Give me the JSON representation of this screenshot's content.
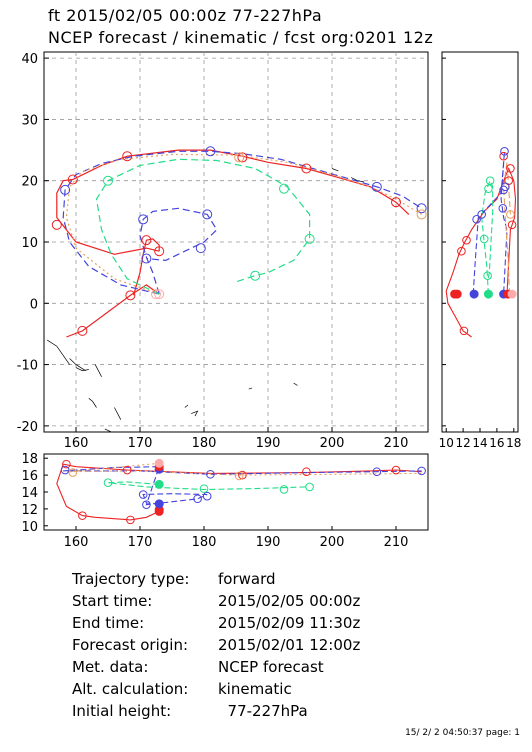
{
  "header": {
    "line1": "ft 2015/02/05 00:00z  77-227hPa",
    "line2": "NCEP forecast / kinematic / fcst org:0201 12z"
  },
  "info": [
    {
      "label": "Trajectory type:",
      "value": "forward"
    },
    {
      "label": "Start time:",
      "value": "2015/02/05 00:00z"
    },
    {
      "label": "End time:",
      "value": "2015/02/09 11:30z"
    },
    {
      "label": "Forecast origin:",
      "value": "2015/02/01 12:00z"
    },
    {
      "label": "Met. data:",
      "value": "NCEP forecast"
    },
    {
      "label": "Alt. calculation:",
      "value": "kinematic"
    },
    {
      "label": "Initial height:",
      "value": "  77-227hPa"
    }
  ],
  "footer": "15/ 2/ 2 04:50:37 page: 1",
  "chart_data": [
    {
      "type": "line",
      "panel": "map",
      "xlim": [
        155,
        215
      ],
      "ylim": [
        -21,
        41
      ],
      "xticks": [
        160,
        170,
        180,
        190,
        200,
        210
      ],
      "yticks": [
        -20,
        -10,
        0,
        10,
        20,
        30,
        40
      ],
      "grid": true,
      "series": [
        {
          "color": "#ee2222",
          "dash": "solid",
          "points": [
            [
              173,
              1.5
            ],
            [
              171,
              3
            ],
            [
              168.5,
              1.3
            ],
            [
              161,
              -4.5
            ],
            [
              158.5,
              -5.5
            ]
          ]
        },
        {
          "color": "#ee2222",
          "dash": "solid",
          "points": [
            [
              169,
              1.3
            ],
            [
              170,
              5
            ],
            [
              170.5,
              8
            ],
            [
              171,
              10.3
            ],
            [
              172,
              10.5
            ],
            [
              173,
              9.5
            ],
            [
              173,
              8.5
            ]
          ]
        },
        {
          "color": "#ee2222",
          "dash": "solid",
          "points": [
            [
              173,
              8.5
            ],
            [
              171,
              9
            ],
            [
              166,
              8
            ],
            [
              160,
              10
            ],
            [
              157,
              14
            ],
            [
              157,
              18
            ],
            [
              158,
              20
            ],
            [
              159.5,
              20.2
            ],
            [
              164,
              22.5
            ],
            [
              168,
              24
            ],
            [
              176,
              25
            ],
            [
              181,
              25
            ],
            [
              186,
              24
            ],
            [
              190,
              23
            ],
            [
              196,
              22
            ],
            [
              201,
              20.5
            ],
            [
              206,
              19
            ],
            [
              210,
              16.5
            ],
            [
              212,
              14.5
            ]
          ]
        },
        {
          "color": "#4444dd",
          "dash": "dashed",
          "points": [
            [
              173,
              1.5
            ],
            [
              172,
              5
            ],
            [
              171,
              7.5
            ],
            [
              170,
              11
            ],
            [
              170.5,
              13.7
            ],
            [
              172,
              15
            ],
            [
              176,
              15.5
            ],
            [
              180.5,
              14.5
            ],
            [
              182,
              12
            ],
            [
              180,
              10
            ],
            [
              177,
              8.5
            ],
            [
              174,
              7
            ],
            [
              171,
              7.3
            ]
          ]
        },
        {
          "color": "#4444dd",
          "dash": "dashed",
          "points": [
            [
              173,
              1.5
            ],
            [
              167,
              3
            ],
            [
              162,
              6
            ],
            [
              159,
              10
            ],
            [
              158,
              14
            ],
            [
              158.3,
              18.5
            ],
            [
              160,
              21
            ],
            [
              164,
              22.8
            ],
            [
              169,
              24
            ],
            [
              176,
              24.8
            ],
            [
              181,
              24.8
            ],
            [
              186,
              24.4
            ],
            [
              192,
              23.5
            ],
            [
              197,
              22
            ],
            [
              202,
              20.5
            ],
            [
              207,
              19
            ],
            [
              211,
              17.5
            ],
            [
              214,
              15.5
            ]
          ]
        },
        {
          "color": "#e8a060",
          "dash": "dotted",
          "points": [
            [
              173,
              1.5
            ],
            [
              166,
              4
            ],
            [
              160,
              9
            ],
            [
              158.5,
              14
            ],
            [
              159,
              19
            ],
            [
              161,
              21.5
            ],
            [
              167,
              23.5
            ],
            [
              175,
              24.3
            ],
            [
              185,
              24.2
            ],
            [
              193,
              23
            ],
            [
              200,
              21
            ],
            [
              206,
              19
            ],
            [
              210,
              17
            ],
            [
              214,
              14.5
            ]
          ]
        },
        {
          "color": "#22dd88",
          "dash": "dashed",
          "points": [
            [
              173,
              1.5
            ],
            [
              168,
              4
            ],
            [
              165.5,
              8
            ],
            [
              164,
              12
            ],
            [
              163.2,
              17
            ],
            [
              165,
              20
            ],
            [
              170,
              22.5
            ],
            [
              176,
              23.5
            ],
            [
              182,
              23.3
            ],
            [
              188,
              22
            ],
            [
              193,
              19
            ],
            [
              196.5,
              14.5
            ],
            [
              196.5,
              10.5
            ],
            [
              194,
              7
            ],
            [
              190,
              5
            ],
            [
              188,
              4.5
            ],
            [
              185,
              3.5
            ]
          ]
        }
      ],
      "markers": [
        {
          "color": "#ee2222",
          "points": [
            [
              161,
              -4.5
            ],
            [
              168.5,
              1.3
            ],
            [
              171,
              10.3
            ],
            [
              173,
              8.5
            ],
            [
              157,
              12.8
            ],
            [
              159.5,
              20.2
            ],
            [
              168,
              24
            ],
            [
              186,
              23.8
            ],
            [
              196,
              22
            ],
            [
              210,
              16.5
            ]
          ]
        },
        {
          "color": "#4444dd",
          "points": [
            [
              170.5,
              13.7
            ],
            [
              180.5,
              14.5
            ],
            [
              179.5,
              9
            ],
            [
              171,
              7.3
            ],
            [
              158.3,
              18.5
            ],
            [
              181,
              24.8
            ],
            [
              207,
              19
            ],
            [
              214,
              15.5
            ]
          ]
        },
        {
          "color": "#e8a060",
          "points": [
            [
              214,
              14.5
            ],
            [
              185.5,
              23.8
            ]
          ]
        },
        {
          "color": "#22dd88",
          "points": [
            [
              165,
              20
            ],
            [
              192.5,
              18.7
            ],
            [
              196.5,
              10.5
            ],
            [
              188,
              4.5
            ]
          ]
        },
        {
          "color": "#ffaaaa",
          "points": [
            [
              173,
              1.5
            ],
            [
              172.5,
              1.5
            ]
          ]
        }
      ]
    },
    {
      "type": "line",
      "panel": "latitude-height",
      "xlim": [
        9.5,
        18.5
      ],
      "ylim": [
        -21,
        41
      ],
      "xticks": [
        10,
        12,
        14,
        16,
        18
      ],
      "xtick_labels": [
        "10",
        "12",
        "14",
        "16",
        "18"
      ],
      "grid": false
    },
    {
      "type": "line",
      "panel": "longitude-height",
      "xlim": [
        155,
        215
      ],
      "ylim": [
        9.5,
        18.5
      ],
      "xticks": [
        160,
        170,
        180,
        190,
        200,
        210
      ],
      "yticks": [
        10,
        12,
        14,
        16,
        18
      ],
      "grid": false
    }
  ]
}
